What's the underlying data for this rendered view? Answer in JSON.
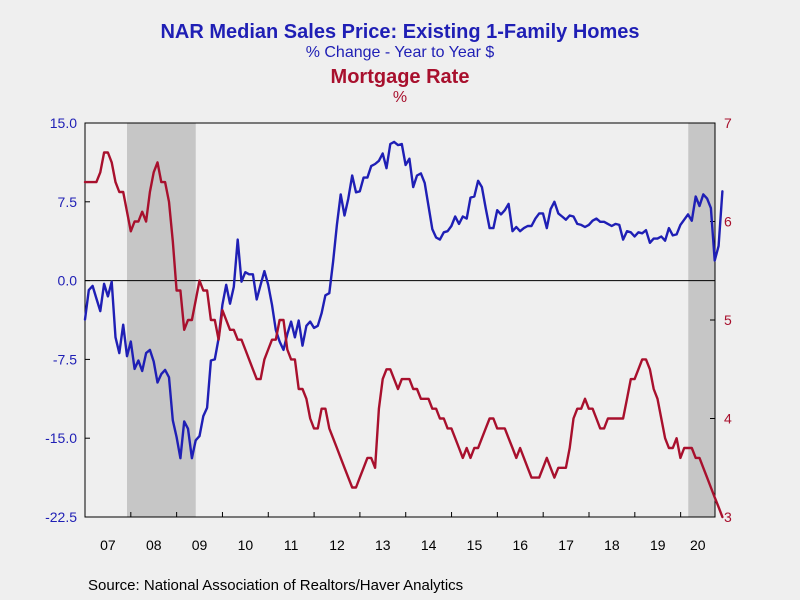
{
  "chart_data": {
    "type": "line",
    "title": "NAR Median Sales Price: Existing 1-Family Homes",
    "title_units": "% Change - Year to Year   $",
    "subtitle": "Mortgage Rate",
    "subtitle_units": "%",
    "source": "Source:  National Association of Realtors/Haver Analytics",
    "left_axis": {
      "ylim": [
        -22.5,
        15.0
      ],
      "ticks": [
        "15.0",
        "7.5",
        "0.0",
        "-7.5",
        "-15.0",
        "-22.5"
      ]
    },
    "right_axis": {
      "ylim": [
        3,
        7
      ],
      "ticks": [
        "7",
        "6",
        "5",
        "4",
        "3"
      ]
    },
    "x_ticks": [
      "07",
      "08",
      "09",
      "10",
      "11",
      "12",
      "13",
      "14",
      "15",
      "16",
      "17",
      "18",
      "19",
      "20"
    ],
    "x_range": [
      2007.0,
      2020.75
    ],
    "recessions": [
      [
        2007.9167,
        2009.4167
      ],
      [
        2020.1667,
        2020.75
      ]
    ],
    "colors": {
      "left_series": "#1f1fb5",
      "right_series": "#a8102d",
      "recession": "#c6c6c6",
      "zero_line": "#000000"
    },
    "series": [
      {
        "axis": "left",
        "x_start": 2007.0,
        "step": 0.0833,
        "values": [
          -3.7,
          -0.9,
          -0.5,
          -1.7,
          -2.9,
          -0.3,
          -1.5,
          -0.1,
          -5.4,
          -6.9,
          -4.2,
          -7.2,
          -5.8,
          -8.4,
          -7.6,
          -8.6,
          -6.9,
          -6.6,
          -7.7,
          -9.7,
          -8.9,
          -8.5,
          -9.2,
          -13.3,
          -14.9,
          -16.9,
          -13.4,
          -14.1,
          -16.9,
          -15.2,
          -14.8,
          -12.9,
          -12.1,
          -7.6,
          -7.5,
          -5.5,
          -2.3,
          -0.4,
          -2.2,
          -0.6,
          3.9,
          -0.1,
          0.8,
          0.6,
          0.6,
          -1.8,
          -0.4,
          0.9,
          -0.4,
          -2.3,
          -4.7,
          -5.8,
          -6.6,
          -5.1,
          -3.9,
          -5.4,
          -3.8,
          -6.2,
          -4.3,
          -3.9,
          -4.5,
          -4.3,
          -3.1,
          -1.4,
          -1.2,
          1.8,
          5.3,
          8.2,
          6.2,
          7.8,
          10.0,
          8.4,
          8.5,
          9.8,
          9.8,
          10.9,
          11.1,
          11.4,
          12.1,
          10.7,
          13.0,
          13.2,
          12.9,
          13.0,
          11.0,
          11.6,
          8.9,
          10.0,
          10.2,
          9.3,
          7.1,
          4.9,
          4.1,
          3.9,
          4.6,
          4.7,
          5.2,
          6.1,
          5.4,
          6.1,
          5.9,
          7.9,
          8.0,
          9.5,
          8.9,
          6.9,
          5.0,
          5.0,
          6.7,
          6.3,
          6.7,
          7.3,
          4.7,
          5.1,
          4.7,
          5.0,
          5.2,
          5.2,
          5.9,
          6.4,
          6.4,
          5.0,
          6.8,
          7.5,
          6.4,
          6.1,
          5.8,
          6.2,
          6.1,
          5.4,
          5.3,
          5.1,
          5.3,
          5.7,
          5.9,
          5.6,
          5.6,
          5.4,
          5.2,
          5.4,
          5.3,
          3.9,
          4.7,
          4.6,
          4.2,
          4.6,
          4.5,
          4.8,
          3.6,
          4.0,
          4.0,
          4.2,
          3.8,
          5.0,
          4.3,
          4.4,
          5.3,
          5.8,
          6.3,
          5.7,
          8.0,
          7.1,
          8.2,
          7.8,
          6.9,
          1.9,
          3.3,
          8.5
        ]
      },
      {
        "axis": "right",
        "x_start": 2007.0,
        "step": 0.0833,
        "values": [
          6.4,
          6.4,
          6.4,
          6.4,
          6.5,
          6.7,
          6.7,
          6.6,
          6.4,
          6.3,
          6.3,
          6.1,
          5.9,
          6.0,
          6.0,
          6.1,
          6.0,
          6.3,
          6.5,
          6.6,
          6.4,
          6.4,
          6.2,
          5.8,
          5.3,
          5.3,
          4.9,
          5.0,
          5.0,
          5.2,
          5.4,
          5.3,
          5.3,
          5.0,
          5.0,
          4.8,
          5.1,
          5.0,
          4.9,
          4.9,
          4.8,
          4.8,
          4.7,
          4.6,
          4.5,
          4.4,
          4.4,
          4.6,
          4.7,
          4.8,
          4.8,
          5.0,
          5.0,
          4.7,
          4.6,
          4.6,
          4.3,
          4.3,
          4.2,
          4.0,
          3.9,
          3.9,
          4.1,
          4.1,
          3.9,
          3.8,
          3.7,
          3.6,
          3.5,
          3.4,
          3.3,
          3.3,
          3.4,
          3.5,
          3.6,
          3.6,
          3.5,
          4.1,
          4.4,
          4.5,
          4.5,
          4.4,
          4.3,
          4.4,
          4.4,
          4.4,
          4.3,
          4.3,
          4.2,
          4.2,
          4.2,
          4.1,
          4.1,
          4.0,
          4.0,
          3.9,
          3.9,
          3.8,
          3.7,
          3.6,
          3.7,
          3.6,
          3.7,
          3.7,
          3.8,
          3.9,
          4.0,
          4.0,
          3.9,
          3.9,
          3.9,
          3.8,
          3.7,
          3.6,
          3.7,
          3.6,
          3.5,
          3.4,
          3.4,
          3.4,
          3.5,
          3.6,
          3.5,
          3.4,
          3.5,
          3.5,
          3.5,
          3.7,
          4.0,
          4.1,
          4.1,
          4.2,
          4.1,
          4.1,
          4.0,
          3.9,
          3.9,
          4.0,
          4.0,
          4.0,
          4.0,
          4.0,
          4.2,
          4.4,
          4.4,
          4.5,
          4.6,
          4.6,
          4.5,
          4.3,
          4.2,
          4.0,
          3.8,
          3.7,
          3.7,
          3.8,
          3.6,
          3.7,
          3.7,
          3.7,
          3.6,
          3.6,
          3.5,
          3.4,
          3.3,
          3.2,
          3.1,
          3.0
        ]
      }
    ]
  }
}
